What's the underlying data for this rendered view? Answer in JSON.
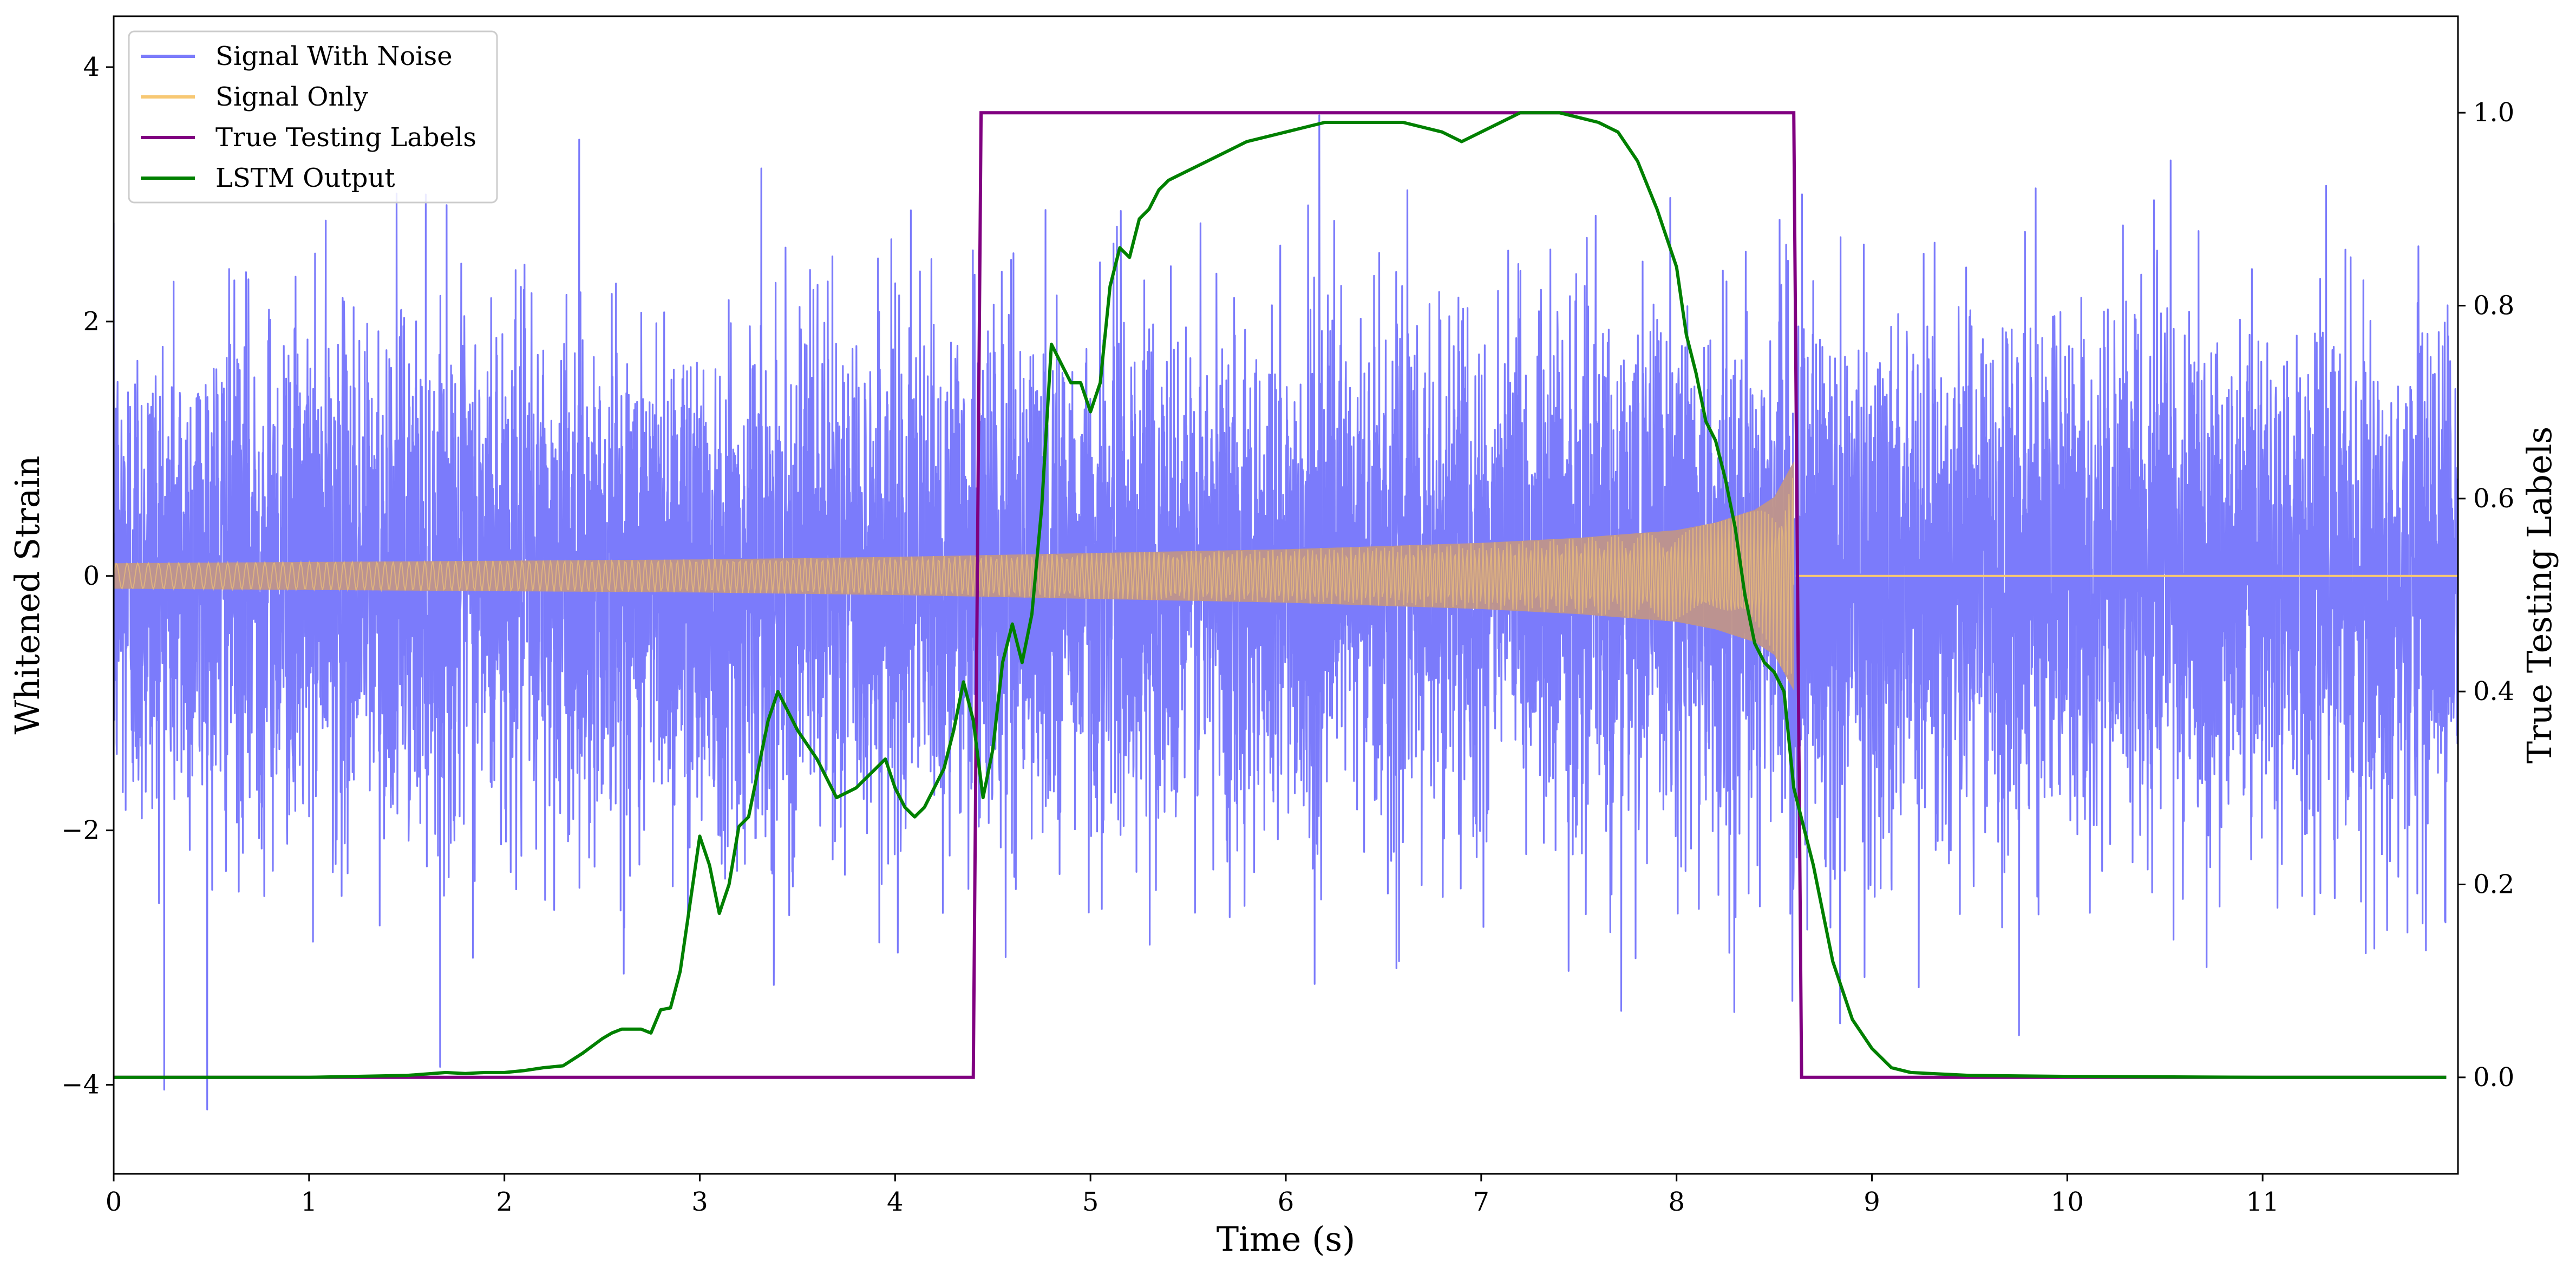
{
  "chart_data": {
    "type": "line",
    "title": "",
    "xlabel": "Time (s)",
    "ylabel": "Whitened Strain",
    "ylabel_right": "True Testing Labels",
    "xlim": [
      0,
      12
    ],
    "ylim": [
      -4.7,
      4.4
    ],
    "ylim_right": [
      -0.1,
      1.1
    ],
    "x_ticks": [
      0,
      1,
      2,
      3,
      4,
      5,
      6,
      7,
      8,
      9,
      10,
      11
    ],
    "x_tick_labels": [
      "0",
      "1",
      "2",
      "3",
      "4",
      "5",
      "6",
      "7",
      "8",
      "9",
      "10",
      "11"
    ],
    "y_ticks": [
      -4,
      -2,
      0,
      2,
      4
    ],
    "y_tick_labels": [
      "−4",
      "−2",
      "0",
      "2",
      "4"
    ],
    "y_right_ticks": [
      0.0,
      0.2,
      0.4,
      0.6,
      0.8,
      1.0
    ],
    "y_right_tick_labels": [
      "0.0",
      "0.2",
      "0.4",
      "0.6",
      "0.8",
      "1.0"
    ],
    "grid": false,
    "legend_position": "top-left",
    "series": [
      {
        "name": "Signal With Noise",
        "color": "#7b7bfb",
        "axis": "left",
        "kind": "noise",
        "std": 1.0,
        "x_range": [
          0,
          12
        ]
      },
      {
        "name": "Signal Only",
        "color": "#f7c873",
        "fill_color": "#c0958a",
        "axis": "left",
        "kind": "chirp_envelope",
        "envelope_x": [
          0.0,
          1.0,
          2.0,
          3.0,
          4.0,
          5.0,
          6.0,
          7.0,
          7.5,
          8.0,
          8.2,
          8.4,
          8.5,
          8.6,
          8.61,
          12.0
        ],
        "envelope_y": [
          0.1,
          0.11,
          0.12,
          0.13,
          0.15,
          0.18,
          0.21,
          0.26,
          0.3,
          0.36,
          0.42,
          0.52,
          0.62,
          0.9,
          0.0,
          0.0
        ]
      },
      {
        "name": "True Testing Labels",
        "color": "#800080",
        "axis": "right",
        "x": [
          0.0,
          4.4,
          4.44,
          8.6,
          8.64,
          11.94
        ],
        "y": [
          0.0,
          0.0,
          1.0,
          1.0,
          0.0,
          0.0
        ]
      },
      {
        "name": "LSTM Output",
        "color": "#008000",
        "axis": "right",
        "x": [
          0.0,
          0.5,
          1.0,
          1.5,
          1.7,
          1.8,
          1.9,
          2.0,
          2.1,
          2.2,
          2.3,
          2.4,
          2.5,
          2.55,
          2.6,
          2.7,
          2.75,
          2.8,
          2.85,
          2.9,
          2.95,
          3.0,
          3.05,
          3.1,
          3.15,
          3.2,
          3.25,
          3.3,
          3.35,
          3.4,
          3.5,
          3.6,
          3.65,
          3.7,
          3.8,
          3.9,
          3.95,
          4.0,
          4.05,
          4.1,
          4.15,
          4.2,
          4.25,
          4.3,
          4.35,
          4.4,
          4.45,
          4.5,
          4.55,
          4.6,
          4.65,
          4.7,
          4.75,
          4.8,
          4.85,
          4.9,
          4.95,
          5.0,
          5.05,
          5.1,
          5.15,
          5.2,
          5.25,
          5.3,
          5.35,
          5.4,
          5.5,
          5.6,
          5.7,
          5.8,
          6.0,
          6.2,
          6.4,
          6.6,
          6.8,
          6.9,
          7.0,
          7.1,
          7.2,
          7.4,
          7.6,
          7.7,
          7.8,
          7.9,
          8.0,
          8.05,
          8.1,
          8.15,
          8.2,
          8.25,
          8.3,
          8.35,
          8.4,
          8.45,
          8.5,
          8.55,
          8.6,
          8.7,
          8.8,
          8.9,
          9.0,
          9.1,
          9.2,
          9.5,
          10.0,
          11.0,
          11.94
        ],
        "y": [
          0.0,
          0.0,
          0.0,
          0.002,
          0.005,
          0.004,
          0.005,
          0.005,
          0.007,
          0.01,
          0.012,
          0.025,
          0.04,
          0.046,
          0.05,
          0.05,
          0.046,
          0.07,
          0.072,
          0.11,
          0.18,
          0.25,
          0.22,
          0.17,
          0.2,
          0.26,
          0.27,
          0.32,
          0.37,
          0.4,
          0.36,
          0.33,
          0.31,
          0.29,
          0.3,
          0.32,
          0.33,
          0.3,
          0.28,
          0.27,
          0.28,
          0.3,
          0.32,
          0.36,
          0.41,
          0.37,
          0.29,
          0.34,
          0.43,
          0.47,
          0.43,
          0.48,
          0.59,
          0.76,
          0.74,
          0.72,
          0.72,
          0.69,
          0.72,
          0.82,
          0.86,
          0.85,
          0.89,
          0.9,
          0.92,
          0.93,
          0.94,
          0.95,
          0.96,
          0.97,
          0.98,
          0.99,
          0.99,
          0.99,
          0.98,
          0.97,
          0.98,
          0.99,
          1.0,
          1.0,
          0.99,
          0.98,
          0.95,
          0.9,
          0.84,
          0.77,
          0.73,
          0.68,
          0.66,
          0.62,
          0.57,
          0.5,
          0.45,
          0.43,
          0.42,
          0.4,
          0.3,
          0.22,
          0.12,
          0.06,
          0.03,
          0.01,
          0.005,
          0.002,
          0.001,
          0.0,
          0.0
        ]
      }
    ]
  }
}
